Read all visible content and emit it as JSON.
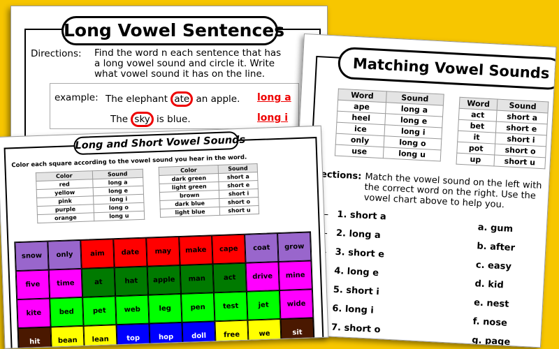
{
  "background_color": "#f7c600",
  "page_long_vowel_sentences": {
    "title": "Long Vowel Sentences",
    "directions_label": "Directions:",
    "directions_text": "Find the word  n each sentence that has a long vowel sound and circle it.  Write what vowel sound it has on the line.",
    "example_label": "example:",
    "examples": [
      {
        "before": "The elephant ",
        "circled": "ate",
        "after": " an apple.",
        "answer": "long a"
      },
      {
        "before": "The ",
        "circled": "sky",
        "after": " is blue.",
        "answer": "long i"
      }
    ]
  },
  "page_matching": {
    "title": "Matching Vowel Sounds",
    "tables": [
      {
        "headers": [
          "Word",
          "Sound"
        ],
        "rows": [
          [
            "ape",
            "long a"
          ],
          [
            "heel",
            "long e"
          ],
          [
            "ice",
            "long i"
          ],
          [
            "only",
            "long o"
          ],
          [
            "use",
            "long u"
          ]
        ]
      },
      {
        "headers": [
          "Word",
          "Sound"
        ],
        "rows": [
          [
            "act",
            "short a"
          ],
          [
            "bet",
            "short e"
          ],
          [
            "it",
            "short i"
          ],
          [
            "pot",
            "short o"
          ],
          [
            "up",
            "short u"
          ]
        ]
      }
    ],
    "directions_label": "Directions:",
    "directions_text": "Match the vowel sound on the left with the correct word on the right.  Use the vowel chart above to help you.",
    "items": [
      "1.  short a",
      "2.  long a",
      "3.  short e",
      "4.  long e",
      "5.  short i",
      "6.  long i",
      "7.  short o"
    ],
    "choices": [
      "a.  gum",
      "b.  after",
      "c.  easy",
      "d.  kid",
      "e.  nest",
      "f.  nose",
      "g.  page"
    ]
  },
  "page_long_short": {
    "title": "Long and Short Vowel Sounds",
    "instruction": "Color each square according to the vowel sound you hear in the word.",
    "tables": [
      {
        "headers": [
          "Color",
          "Sound"
        ],
        "rows": [
          [
            "red",
            "long a"
          ],
          [
            "yellow",
            "long e"
          ],
          [
            "pink",
            "long i"
          ],
          [
            "purple",
            "long o"
          ],
          [
            "orange",
            "long u"
          ]
        ]
      },
      {
        "headers": [
          "Color",
          "Sound"
        ],
        "rows": [
          [
            "dark green",
            "short a"
          ],
          [
            "light green",
            "short e"
          ],
          [
            "brown",
            "short i"
          ],
          [
            "dark blue",
            "short o"
          ],
          [
            "light blue",
            "short u"
          ]
        ]
      }
    ],
    "colors": {
      "red": "#ff0000",
      "yellow": "#ffff00",
      "pink": "#ff00ff",
      "purple": "#9966cc",
      "orange": "#ff7f27",
      "dark green": "#007a00",
      "light green": "#00ff00",
      "brown": "#4a1800",
      "dark blue": "#0000ff",
      "light blue": "#66ccff"
    },
    "grid": [
      [
        [
          "snow",
          "purple"
        ],
        [
          "only",
          "purple"
        ],
        [
          "aim",
          "red"
        ],
        [
          "date",
          "red"
        ],
        [
          "may",
          "red"
        ],
        [
          "make",
          "red"
        ],
        [
          "cape",
          "red"
        ],
        [
          "coat",
          "purple"
        ],
        [
          "grow",
          "purple"
        ]
      ],
      [
        [
          "five",
          "pink"
        ],
        [
          "time",
          "pink"
        ],
        [
          "at",
          "dark green"
        ],
        [
          "hat",
          "dark green"
        ],
        [
          "apple",
          "dark green"
        ],
        [
          "man",
          "dark green"
        ],
        [
          "act",
          "dark green"
        ],
        [
          "drive",
          "pink"
        ],
        [
          "mine",
          "pink"
        ]
      ],
      [
        [
          "kite",
          "pink"
        ],
        [
          "bed",
          "light green"
        ],
        [
          "pet",
          "light green"
        ],
        [
          "web",
          "light green"
        ],
        [
          "leg",
          "light green"
        ],
        [
          "pen",
          "light green"
        ],
        [
          "test",
          "light green"
        ],
        [
          "jet",
          "light green"
        ],
        [
          "wide",
          "pink"
        ]
      ],
      [
        [
          "hit",
          "brown"
        ],
        [
          "bean",
          "yellow"
        ],
        [
          "lean",
          "yellow"
        ],
        [
          "top",
          "dark blue"
        ],
        [
          "hop",
          "dark blue"
        ],
        [
          "doll",
          "dark blue"
        ],
        [
          "free",
          "yellow"
        ],
        [
          "we",
          "yellow"
        ],
        [
          "sit",
          "brown"
        ]
      ]
    ]
  }
}
